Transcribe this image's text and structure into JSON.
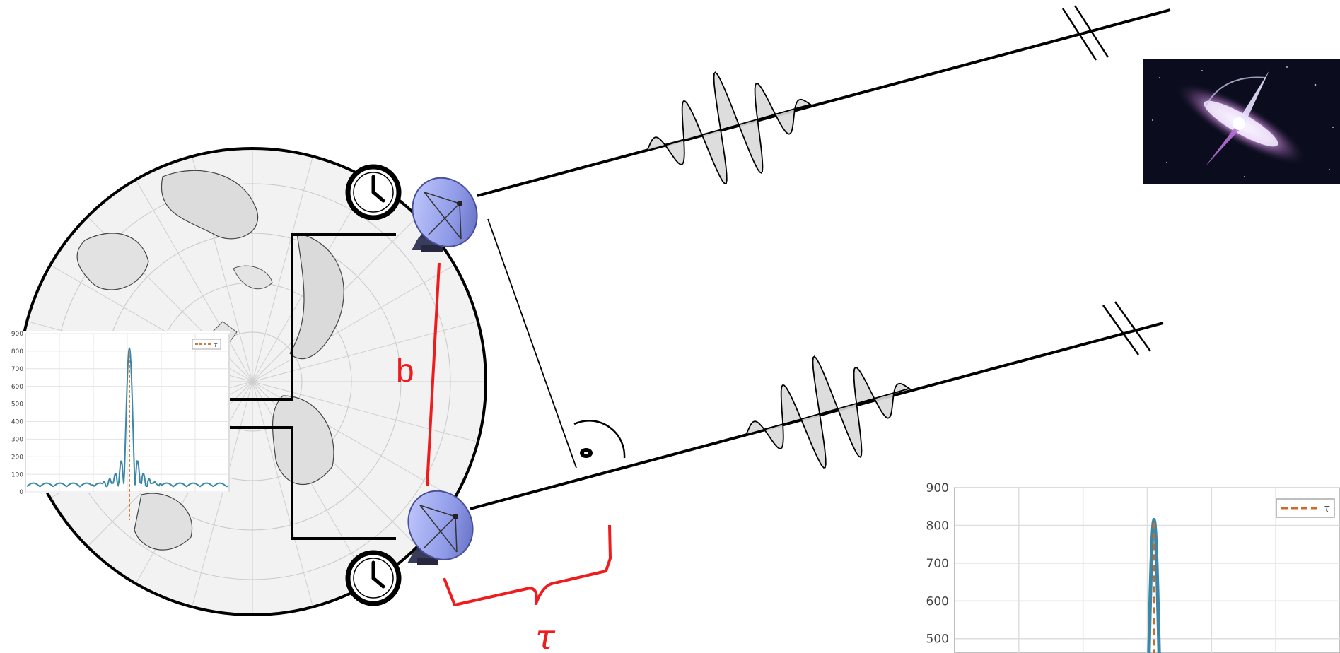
{
  "diagram": {
    "baseline_label": "b",
    "delay_label": "τ",
    "colors": {
      "annotation": "#ee1c1c",
      "line": "#000000",
      "wave_fill": "#d9d9d9",
      "plot_line": "#3a87a8",
      "plot_peak": "#e07a3a",
      "dish": "#8f9ae8"
    }
  },
  "icons": [
    "clock-icon",
    "clock-icon",
    "radio-telescope-icon",
    "radio-telescope-icon",
    "galaxy-image",
    "right-angle-icon"
  ],
  "correlation_plot_small": {
    "chart_data": {
      "type": "line",
      "ylim": [
        0,
        900
      ],
      "yticks": [
        "900",
        "800",
        "700",
        "600",
        "500",
        "400",
        "300",
        "200",
        "100",
        "0"
      ],
      "legend": "τ",
      "peak_value": 820
    }
  },
  "correlation_plot_large": {
    "chart_data": {
      "type": "line",
      "ylim": [
        0,
        900
      ],
      "yticks": [
        "900",
        "800",
        "700",
        "600",
        "500"
      ],
      "legend": "τ",
      "peak_value": 815
    }
  }
}
